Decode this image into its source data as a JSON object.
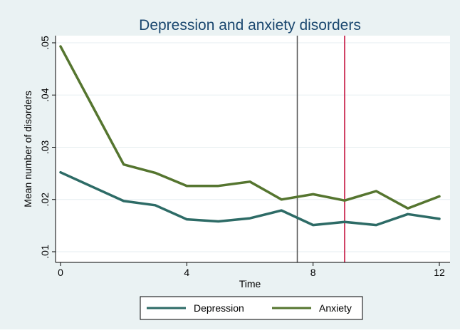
{
  "chart_data": {
    "type": "line",
    "title": "Depression and anxiety disorders",
    "xlabel": "Time",
    "ylabel": "Mean number of disorders",
    "xlim": [
      0,
      12
    ],
    "ylim": [
      0.01,
      0.05
    ],
    "xticks": [
      0,
      4,
      8,
      12
    ],
    "xtick_labels": [
      "0",
      "4",
      "8",
      "12"
    ],
    "yticks": [
      0.01,
      0.02,
      0.03,
      0.04,
      0.05
    ],
    "ytick_labels": [
      ".01",
      ".02",
      ".03",
      ".04",
      ".05"
    ],
    "grid": true,
    "legend_position": "bottom",
    "colors": {
      "page_background": "#eaf2f3",
      "plot_background": "#ffffff",
      "grid": "#e6eef0",
      "axis": "#000000",
      "title": "#1a476f",
      "depression": "#2d6b66",
      "anxiety": "#55752f",
      "vline_gray": "#555555",
      "vline_red": "#c10534"
    },
    "vlines": [
      {
        "x": 7.5,
        "color": "#555555"
      },
      {
        "x": 9,
        "color": "#c10534"
      }
    ],
    "x": [
      0,
      2,
      3,
      4,
      5,
      6,
      7,
      8,
      9,
      10,
      11,
      12
    ],
    "series": [
      {
        "name": "Depression",
        "color": "#2d6b66",
        "values": [
          0.0252,
          0.0197,
          0.0189,
          0.0162,
          0.0158,
          0.0164,
          0.0179,
          0.0151,
          0.0157,
          0.0151,
          0.0172,
          0.0163
        ]
      },
      {
        "name": "Anxiety",
        "color": "#55752f",
        "values": [
          0.0493,
          0.0267,
          0.0251,
          0.0226,
          0.0226,
          0.0234,
          0.02,
          0.021,
          0.0198,
          0.0216,
          0.0183,
          0.0206
        ]
      }
    ]
  }
}
